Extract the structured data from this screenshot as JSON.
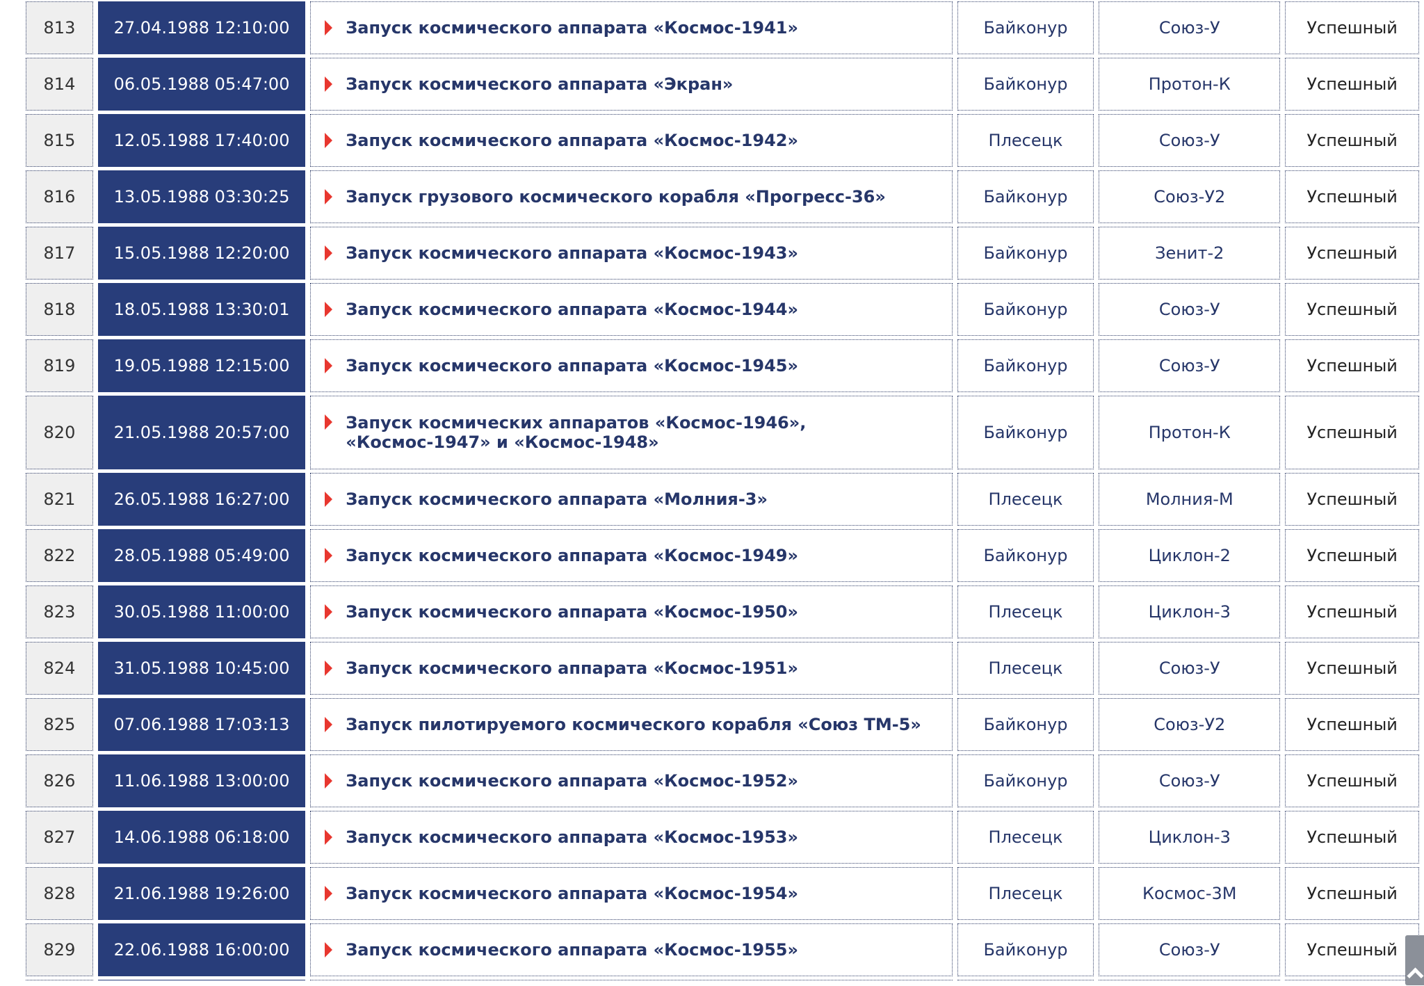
{
  "colors": {
    "date_bg": "#283d7a",
    "title_text": "#263669",
    "bullet": "#e8372f"
  },
  "rows": [
    {
      "num": "813",
      "date": "27.04.1988 12:10:00",
      "title": "Запуск космического аппарата «Космос-1941»",
      "site": "Байконур",
      "rocket": "Союз-У",
      "status": "Успешный"
    },
    {
      "num": "814",
      "date": "06.05.1988 05:47:00",
      "title": "Запуск космического аппарата «Экран»",
      "site": "Байконур",
      "rocket": "Протон-К",
      "status": "Успешный"
    },
    {
      "num": "815",
      "date": "12.05.1988 17:40:00",
      "title": "Запуск космического аппарата «Космос-1942»",
      "site": "Плесецк",
      "rocket": "Союз-У",
      "status": "Успешный"
    },
    {
      "num": "816",
      "date": "13.05.1988 03:30:25",
      "title": "Запуск грузового космического корабля «Прогресс-36»",
      "site": "Байконур",
      "rocket": "Союз-У2",
      "status": "Успешный"
    },
    {
      "num": "817",
      "date": "15.05.1988 12:20:00",
      "title": "Запуск космического аппарата «Космос-1943»",
      "site": "Байконур",
      "rocket": "Зенит-2",
      "status": "Успешный"
    },
    {
      "num": "818",
      "date": "18.05.1988 13:30:01",
      "title": "Запуск космического аппарата «Космос-1944»",
      "site": "Байконур",
      "rocket": "Союз-У",
      "status": "Успешный"
    },
    {
      "num": "819",
      "date": "19.05.1988 12:15:00",
      "title": "Запуск космического аппарата «Космос-1945»",
      "site": "Байконур",
      "rocket": "Союз-У",
      "status": "Успешный"
    },
    {
      "num": "820",
      "date": "21.05.1988 20:57:00",
      "title": "Запуск космических аппаратов «Космос-1946», «Космос-1947» и «Космос-1948»",
      "site": "Байконур",
      "rocket": "Протон-К",
      "status": "Успешный"
    },
    {
      "num": "821",
      "date": "26.05.1988 16:27:00",
      "title": "Запуск космического аппарата «Молния-3»",
      "site": "Плесецк",
      "rocket": "Молния-М",
      "status": "Успешный"
    },
    {
      "num": "822",
      "date": "28.05.1988 05:49:00",
      "title": "Запуск космического аппарата «Космос-1949»",
      "site": "Байконур",
      "rocket": "Циклон-2",
      "status": "Успешный"
    },
    {
      "num": "823",
      "date": "30.05.1988 11:00:00",
      "title": "Запуск космического аппарата «Космос-1950»",
      "site": "Плесецк",
      "rocket": "Циклон-3",
      "status": "Успешный"
    },
    {
      "num": "824",
      "date": "31.05.1988 10:45:00",
      "title": "Запуск космического аппарата «Космос-1951»",
      "site": "Плесецк",
      "rocket": "Союз-У",
      "status": "Успешный"
    },
    {
      "num": "825",
      "date": "07.06.1988 17:03:13",
      "title": "Запуск пилотируемого космического корабля «Союз ТМ-5»",
      "site": "Байконур",
      "rocket": "Союз-У2",
      "status": "Успешный"
    },
    {
      "num": "826",
      "date": "11.06.1988 13:00:00",
      "title": "Запуск космического аппарата «Космос-1952»",
      "site": "Байконур",
      "rocket": "Союз-У",
      "status": "Успешный"
    },
    {
      "num": "827",
      "date": "14.06.1988 06:18:00",
      "title": "Запуск космического аппарата «Космос-1953»",
      "site": "Плесецк",
      "rocket": "Циклон-3",
      "status": "Успешный"
    },
    {
      "num": "828",
      "date": "21.06.1988 19:26:00",
      "title": "Запуск космического аппарата «Космос-1954»",
      "site": "Плесецк",
      "rocket": "Космос-3М",
      "status": "Успешный"
    },
    {
      "num": "829",
      "date": "22.06.1988 16:00:00",
      "title": "Запуск космического аппарата «Космос-1955»",
      "site": "Байконур",
      "rocket": "Союз-У",
      "status": "Успешный"
    },
    {
      "num": "",
      "date": "",
      "title": "",
      "site": "",
      "rocket": "",
      "status": ""
    }
  ]
}
